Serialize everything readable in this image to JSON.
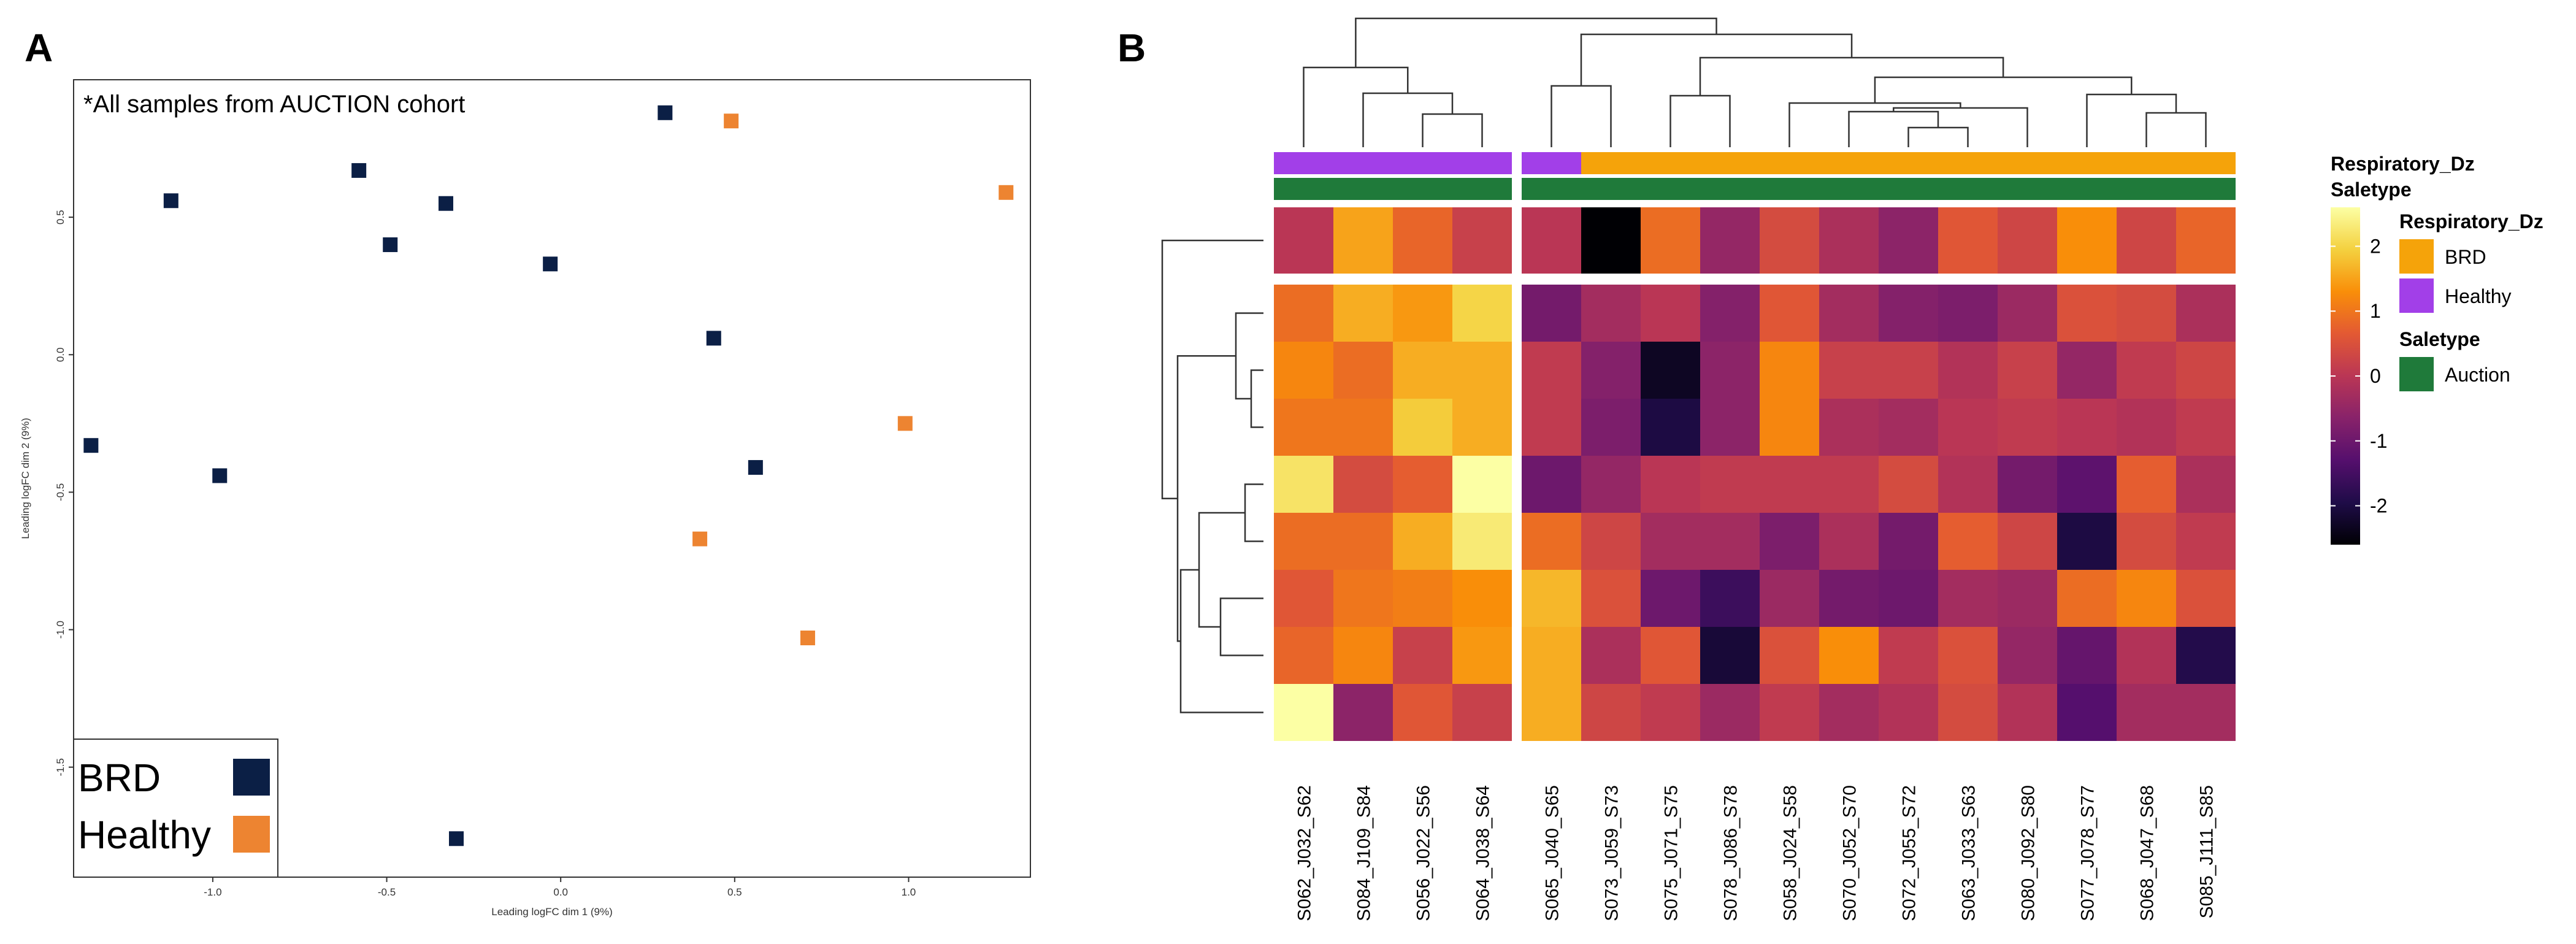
{
  "panel_a": {
    "letter": "A",
    "note": "*All samples from AUCTION cohort",
    "legend": [
      {
        "label": "BRD",
        "color": "#0b1f45"
      },
      {
        "label": "Healthy",
        "color": "#ed8431"
      }
    ]
  },
  "panel_b": {
    "letter": "B"
  },
  "chart_data": [
    {
      "type": "scatter",
      "title": "",
      "xlabel": "Leading logFC dim 1 (9%)",
      "ylabel": "Leading logFC dim 2 (9%)",
      "xlim": [
        -1.4,
        1.35
      ],
      "ylim": [
        -1.9,
        1.0
      ],
      "xticks": [
        -1.0,
        -0.5,
        0.0,
        0.5,
        1.0
      ],
      "xtick_labels": [
        "-1.0",
        "-0.5",
        "0.0",
        "0.5",
        "1.0"
      ],
      "yticks": [
        0.5,
        0.0,
        -0.5,
        -1.0,
        -1.5
      ],
      "ytick_labels": [
        "0.5",
        "0.0",
        "-0.5",
        "-1.0",
        "-1.5"
      ],
      "grid": false,
      "legend_position": "bottom-left",
      "series": [
        {
          "name": "BRD",
          "color": "#0b1f45",
          "points": [
            [
              0.3,
              0.88
            ],
            [
              -0.58,
              0.67
            ],
            [
              -1.12,
              0.56
            ],
            [
              -0.33,
              0.55
            ],
            [
              -0.49,
              0.4
            ],
            [
              -0.03,
              0.33
            ],
            [
              0.44,
              0.06
            ],
            [
              -1.35,
              -0.33
            ],
            [
              -0.98,
              -0.44
            ],
            [
              0.56,
              -0.41
            ],
            [
              -0.3,
              -1.76
            ]
          ]
        },
        {
          "name": "Healthy",
          "color": "#ed8431",
          "points": [
            [
              0.49,
              0.85
            ],
            [
              1.28,
              0.59
            ],
            [
              0.99,
              -0.25
            ],
            [
              0.4,
              -0.67
            ],
            [
              0.71,
              -1.03
            ]
          ]
        }
      ]
    },
    {
      "type": "heatmap",
      "title": "",
      "columns": [
        "S062_J032_S62",
        "S084_J109_S84",
        "S056_J022_S56",
        "S064_J038_S64",
        "S065_J040_S65",
        "S073_J059_S73",
        "S075_J071_S75",
        "S078_J086_S78",
        "S058_J024_S58",
        "S070_J052_S70",
        "S072_J055_S72",
        "S063_J033_S63",
        "S080_J092_S80",
        "S077_J078_S77",
        "S068_J047_S68",
        "S085_J111_S85"
      ],
      "column_split_after": 4,
      "row_split_after": 1,
      "annotations": [
        {
          "name": "Respiratory_Dz",
          "values": [
            "Healthy",
            "Healthy",
            "Healthy",
            "Healthy",
            "Healthy",
            "BRD",
            "BRD",
            "BRD",
            "BRD",
            "BRD",
            "BRD",
            "BRD",
            "BRD",
            "BRD",
            "BRD",
            "BRD"
          ]
        },
        {
          "name": "Saletype",
          "values": [
            "Auction",
            "Auction",
            "Auction",
            "Auction",
            "Auction",
            "Auction",
            "Auction",
            "Auction",
            "Auction",
            "Auction",
            "Auction",
            "Auction",
            "Auction",
            "Auction",
            "Auction",
            "Auction"
          ]
        }
      ],
      "annotation_legend": [
        {
          "title": "Respiratory_Dz",
          "items": [
            {
              "label": "BRD",
              "color": "#f5a30a"
            },
            {
              "label": "Healthy",
              "color": "#a23fe8"
            }
          ]
        },
        {
          "title": "Saletype",
          "items": [
            {
              "label": "Auction",
              "color": "#1f7a3a"
            }
          ]
        }
      ],
      "colorscale": {
        "type": "inferno",
        "range": [
          -2.6,
          2.6
        ],
        "ticks": [
          2,
          1,
          0,
          -1,
          -2
        ],
        "tick_labels": [
          "2",
          "1",
          "0",
          "-1",
          "-2"
        ]
      },
      "values": [
        [
          0,
          1.5,
          0.8,
          0.2,
          0,
          -2.6,
          0.9,
          -0.5,
          0.4,
          -0.2,
          -0.6,
          0.6,
          0.3,
          1.3,
          0.3,
          0.8
        ],
        [
          0.9,
          1.6,
          1.4,
          2.0,
          -0.9,
          -0.3,
          0,
          -0.7,
          0.6,
          -0.3,
          -0.7,
          -0.8,
          -0.4,
          0.5,
          0.4,
          -0.2
        ],
        [
          1.2,
          0.9,
          1.6,
          1.6,
          0.1,
          -0.7,
          -2.3,
          -0.6,
          1.2,
          0.2,
          0.2,
          -0.1,
          0.2,
          -0.5,
          0.1,
          0.3
        ],
        [
          1.0,
          1.0,
          1.9,
          1.6,
          0.1,
          -0.8,
          -2.0,
          -0.6,
          1.2,
          -0.2,
          -0.3,
          0,
          0.1,
          0,
          -0.1,
          0.1
        ],
        [
          2.2,
          0.4,
          0.7,
          2.6,
          -1.0,
          -0.5,
          0,
          0.1,
          0.1,
          0.1,
          0.4,
          -0.1,
          -0.9,
          -1.2,
          0.7,
          -0.2
        ],
        [
          0.9,
          0.9,
          1.6,
          2.3,
          0.9,
          0.3,
          -0.3,
          -0.3,
          -0.8,
          -0.2,
          -0.9,
          0.7,
          0.3,
          -2.0,
          0.4,
          0.1
        ],
        [
          0.6,
          1.0,
          1.1,
          1.3,
          1.7,
          0.5,
          -1.0,
          -1.6,
          -0.4,
          -0.9,
          -1.0,
          -0.3,
          -0.4,
          0.9,
          1.2,
          0.5
        ],
        [
          0.8,
          1.2,
          0.2,
          1.4,
          1.6,
          -0.2,
          0.6,
          -2.1,
          0.5,
          1.3,
          0.1,
          0.5,
          -0.5,
          -1.1,
          -0.1,
          -1.9
        ],
        [
          3.0,
          -0.6,
          0.6,
          0.2,
          1.6,
          0.3,
          0.1,
          -0.4,
          0.1,
          -0.3,
          -0.1,
          0.4,
          -0.1,
          -1.3,
          -0.3,
          -0.3
        ]
      ]
    }
  ]
}
